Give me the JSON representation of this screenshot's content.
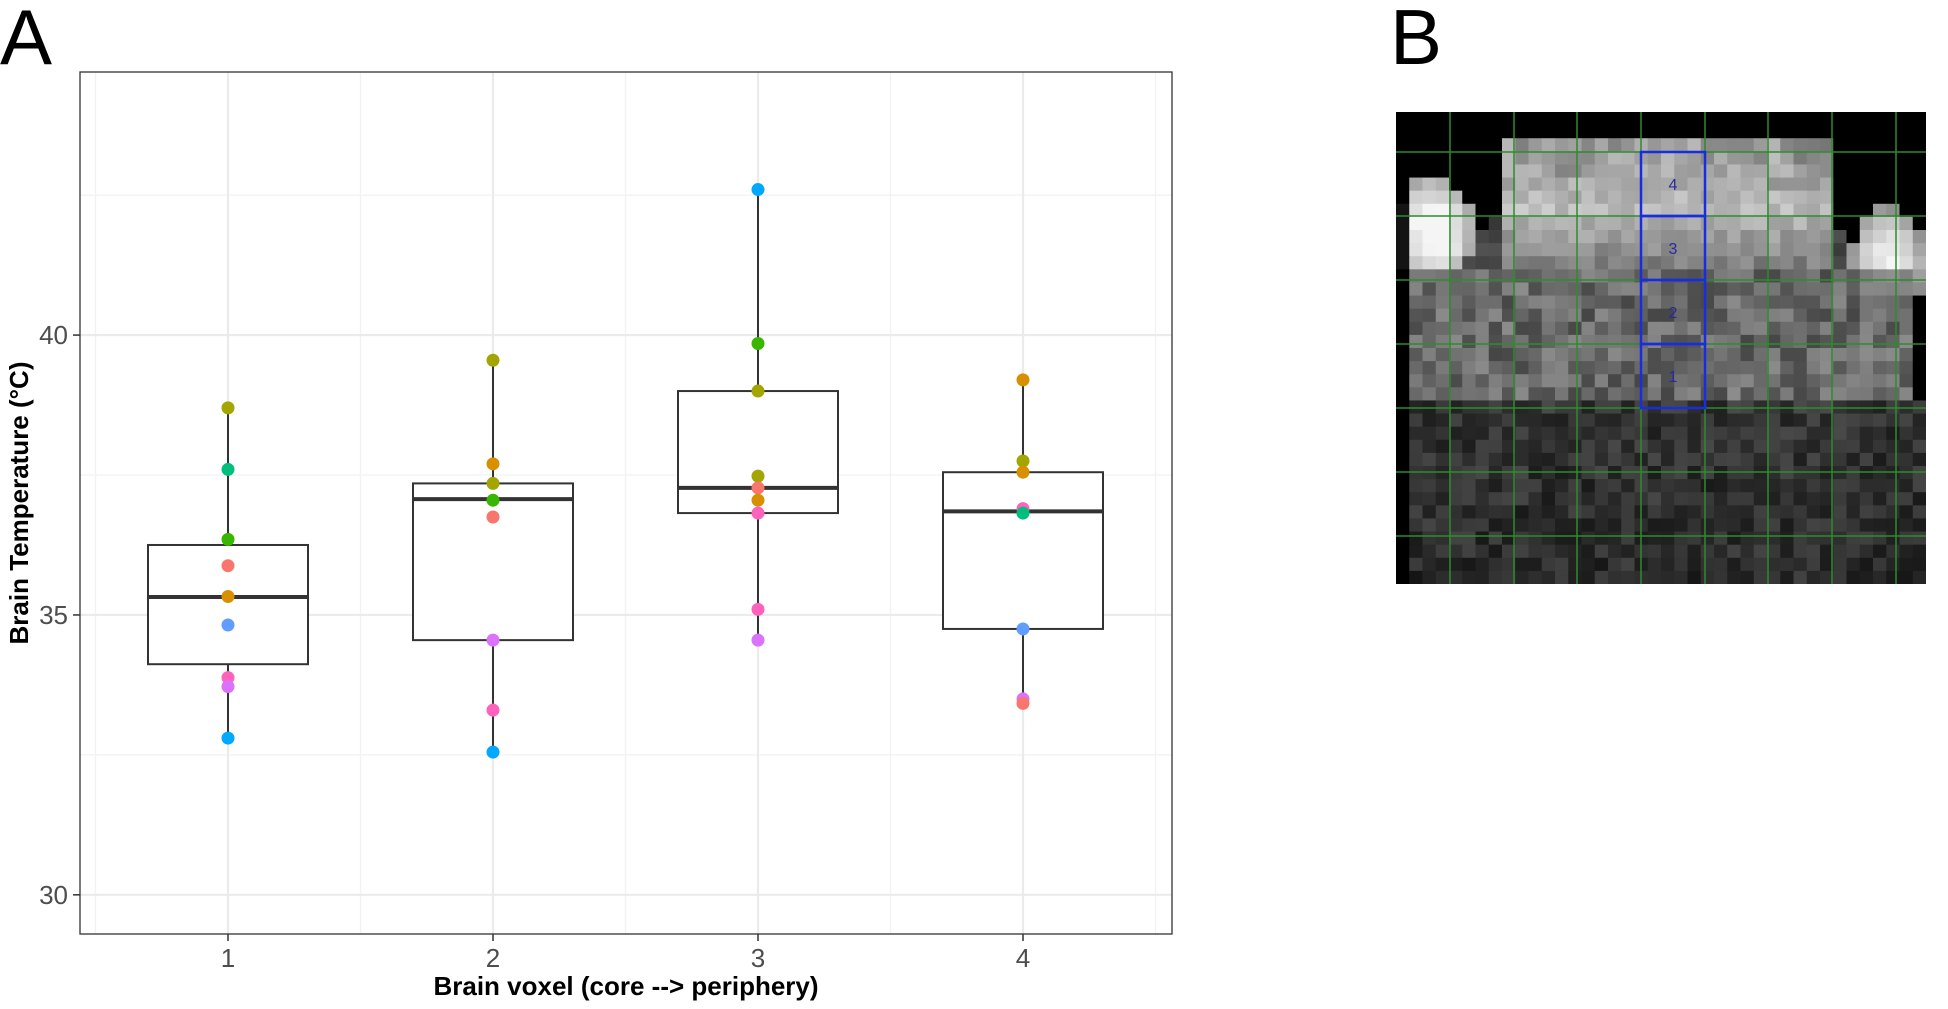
{
  "panels": {
    "a": "A",
    "b": "B"
  },
  "chart_data": {
    "type": "boxplot",
    "xlabel": "Brain voxel (core --> periphery)",
    "ylabel": "Brain Temperature (°C)",
    "ylim": [
      29.3,
      44.7
    ],
    "yticks": [
      30,
      35,
      40
    ],
    "categories": [
      "1",
      "2",
      "3",
      "4"
    ],
    "grid": true,
    "boxes": [
      {
        "category": "1",
        "q1": 34.12,
        "median": 35.32,
        "q3": 36.25,
        "whisker_low": 32.8,
        "whisker_high": 38.7
      },
      {
        "category": "2",
        "q1": 34.55,
        "median": 37.07,
        "q3": 37.35,
        "whisker_low": 32.55,
        "whisker_high": 39.55
      },
      {
        "category": "3",
        "q1": 36.82,
        "median": 37.27,
        "q3": 39.0,
        "whisker_low": 34.55,
        "whisker_high": 42.6
      },
      {
        "category": "4",
        "q1": 34.75,
        "median": 36.85,
        "q3": 37.55,
        "whisker_low": 33.45,
        "whisker_high": 39.2
      }
    ],
    "points": [
      {
        "x": "1",
        "y": 38.7,
        "color": "#A3A500"
      },
      {
        "x": "1",
        "y": 37.6,
        "color": "#00BF7D"
      },
      {
        "x": "1",
        "y": 36.35,
        "color": "#39B600"
      },
      {
        "x": "1",
        "y": 35.88,
        "color": "#F8766D"
      },
      {
        "x": "1",
        "y": 35.33,
        "color": "#D89000"
      },
      {
        "x": "1",
        "y": 34.82,
        "color": "#619CFF"
      },
      {
        "x": "1",
        "y": 33.88,
        "color": "#FF62BC"
      },
      {
        "x": "1",
        "y": 33.72,
        "color": "#DB72FB"
      },
      {
        "x": "1",
        "y": 32.8,
        "color": "#00A9FF"
      },
      {
        "x": "2",
        "y": 39.55,
        "color": "#A3A500"
      },
      {
        "x": "2",
        "y": 37.7,
        "color": "#D89000"
      },
      {
        "x": "2",
        "y": 37.35,
        "color": "#A3A500"
      },
      {
        "x": "2",
        "y": 37.05,
        "color": "#39B600"
      },
      {
        "x": "2",
        "y": 36.75,
        "color": "#F8766D"
      },
      {
        "x": "2",
        "y": 34.55,
        "color": "#DB72FB"
      },
      {
        "x": "2",
        "y": 33.3,
        "color": "#FF62BC"
      },
      {
        "x": "2",
        "y": 32.55,
        "color": "#00A9FF"
      },
      {
        "x": "3",
        "y": 42.6,
        "color": "#00A9FF"
      },
      {
        "x": "3",
        "y": 39.85,
        "color": "#39B600"
      },
      {
        "x": "3",
        "y": 39.0,
        "color": "#A3A500"
      },
      {
        "x": "3",
        "y": 37.48,
        "color": "#A3A500"
      },
      {
        "x": "3",
        "y": 37.27,
        "color": "#F8766D"
      },
      {
        "x": "3",
        "y": 37.05,
        "color": "#D89000"
      },
      {
        "x": "3",
        "y": 36.82,
        "color": "#FF62BC"
      },
      {
        "x": "3",
        "y": 35.1,
        "color": "#FF62BC"
      },
      {
        "x": "3",
        "y": 34.55,
        "color": "#DB72FB"
      },
      {
        "x": "4",
        "y": 39.2,
        "color": "#D89000"
      },
      {
        "x": "4",
        "y": 37.75,
        "color": "#A3A500"
      },
      {
        "x": "4",
        "y": 37.55,
        "color": "#D89000"
      },
      {
        "x": "4",
        "y": 36.9,
        "color": "#FF62BC"
      },
      {
        "x": "4",
        "y": 36.82,
        "color": "#00BF7D"
      },
      {
        "x": "4",
        "y": 34.75,
        "color": "#619CFF"
      },
      {
        "x": "4",
        "y": 33.5,
        "color": "#DB72FB"
      },
      {
        "x": "4",
        "y": 33.42,
        "color": "#F8766D"
      }
    ]
  },
  "mri": {
    "grid_color": "#2E8B2E",
    "highlight_color": "#1A2CE0",
    "label_color": "#2A2AA0",
    "voxel_labels": [
      "4",
      "3",
      "2",
      "1"
    ]
  }
}
